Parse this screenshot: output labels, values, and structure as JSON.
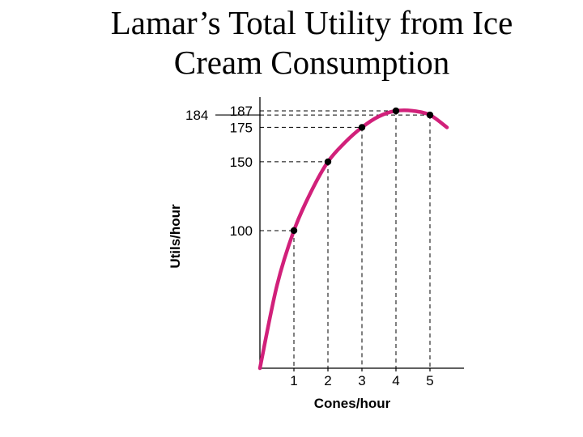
{
  "slide": {
    "title_line1": "Lamar’s Total Utility from Ice",
    "title_line2": "Cream Consumption"
  },
  "chart_data": {
    "type": "line",
    "title": "Lamar’s Total Utility from Ice Cream Consumption",
    "xlabel": "Cones/hour",
    "ylabel": "Utils/hour",
    "xlim": [
      0,
      5.5
    ],
    "ylim": [
      0,
      190
    ],
    "x_ticks": [
      1,
      2,
      3,
      4,
      5
    ],
    "y_ticks": [
      100,
      150,
      175,
      187
    ],
    "y_tick_labels": [
      "100",
      "150",
      "175",
      "187"
    ],
    "extra_y_label": {
      "value": 184,
      "label": "184"
    },
    "points": [
      {
        "x": 1,
        "y": 100
      },
      {
        "x": 2,
        "y": 150
      },
      {
        "x": 3,
        "y": 175
      },
      {
        "x": 4,
        "y": 187
      },
      {
        "x": 5,
        "y": 184
      }
    ],
    "curve": [
      {
        "x": 0,
        "y": 0
      },
      {
        "x": 0.5,
        "y": 60
      },
      {
        "x": 1,
        "y": 100
      },
      {
        "x": 1.5,
        "y": 128
      },
      {
        "x": 2,
        "y": 150
      },
      {
        "x": 2.5,
        "y": 164
      },
      {
        "x": 3,
        "y": 175
      },
      {
        "x": 3.5,
        "y": 183
      },
      {
        "x": 4,
        "y": 187
      },
      {
        "x": 4.5,
        "y": 187
      },
      {
        "x": 5,
        "y": 184
      },
      {
        "x": 5.5,
        "y": 175
      }
    ],
    "curve_color": "#d1207a",
    "guide_color": "#000000",
    "grid": false,
    "legend": "none"
  }
}
